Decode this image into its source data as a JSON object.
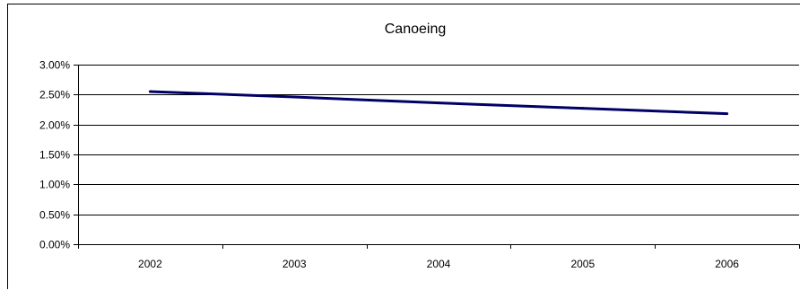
{
  "chart_data": {
    "type": "line",
    "title": "Canoeing",
    "xlabel": "",
    "ylabel": "",
    "categories": [
      "2002",
      "2003",
      "2004",
      "2005",
      "2006"
    ],
    "series": [
      {
        "values": [
          0.0255,
          0.0246,
          0.0236,
          0.0227,
          0.0218
        ]
      }
    ],
    "ylim": [
      0,
      0.03
    ],
    "y_ticks": [
      0,
      0.005,
      0.01,
      0.015,
      0.02,
      0.025,
      0.03
    ],
    "y_tick_labels": [
      "0.00%",
      "0.50%",
      "1.00%",
      "1.50%",
      "2.00%",
      "2.50%",
      "3.00%"
    ],
    "grid": true,
    "legend": "none",
    "colors": {
      "line": "#000066",
      "grid": "#000000",
      "axis": "#000000",
      "background": "#ffffff"
    }
  }
}
